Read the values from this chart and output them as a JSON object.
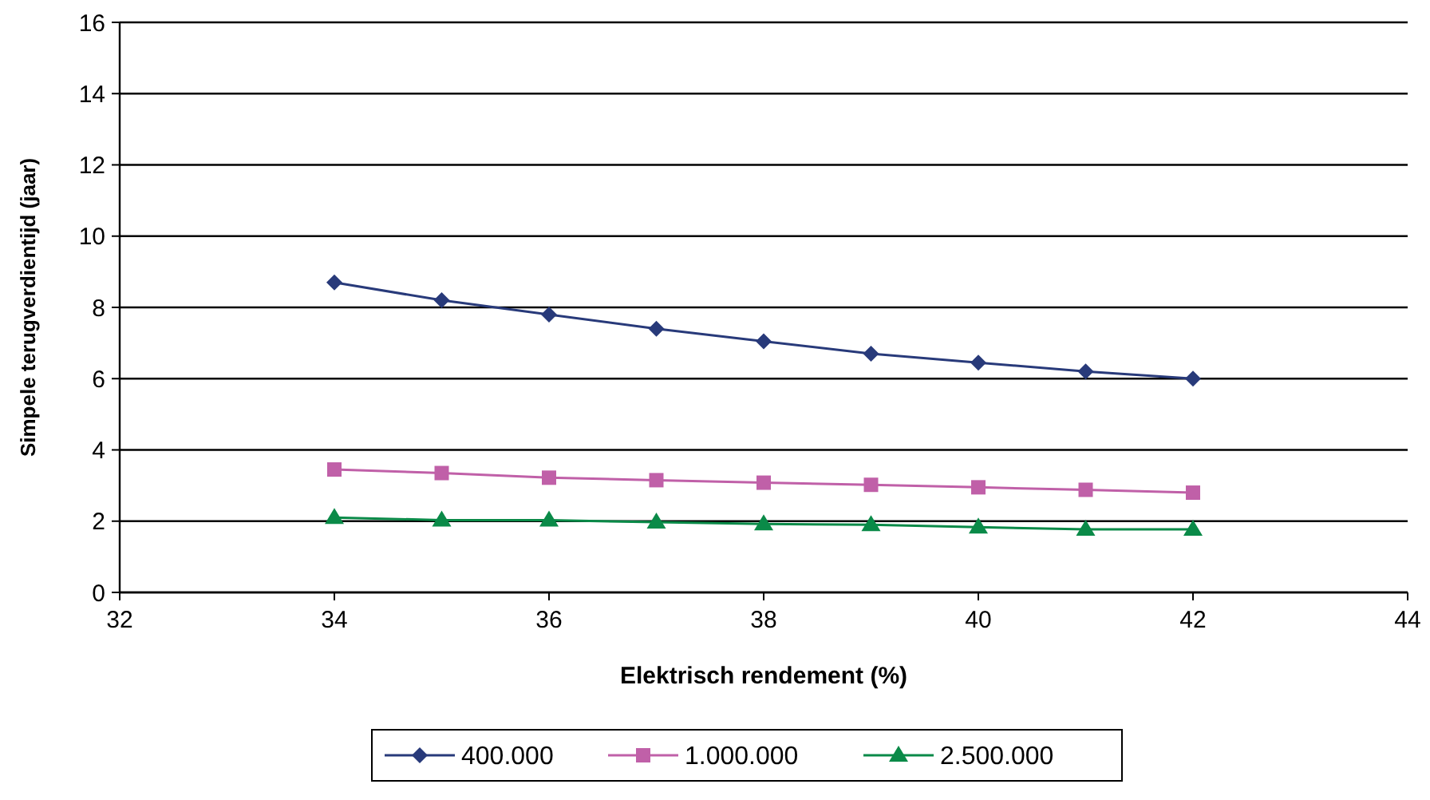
{
  "chart_data": {
    "type": "line",
    "xlabel": "Elektrisch rendement (%)",
    "ylabel": "Simpele terugverdientijd (jaar)",
    "x": [
      34,
      35,
      36,
      37,
      38,
      39,
      40,
      41,
      42
    ],
    "series": [
      {
        "name": "400.000",
        "color": "#283a7a",
        "marker": "diamond",
        "values": [
          8.7,
          8.2,
          7.8,
          7.4,
          7.05,
          6.7,
          6.45,
          6.2,
          6.0
        ]
      },
      {
        "name": "1.000.000",
        "color": "#c060a8",
        "marker": "square",
        "values": [
          3.45,
          3.35,
          3.22,
          3.15,
          3.08,
          3.02,
          2.95,
          2.88,
          2.8
        ]
      },
      {
        "name": "2.500.000",
        "color": "#0a8a48",
        "marker": "triangle",
        "values": [
          2.1,
          2.03,
          2.03,
          1.97,
          1.92,
          1.9,
          1.83,
          1.77,
          1.77
        ]
      }
    ],
    "xlim": [
      32,
      44
    ],
    "xticks": [
      32,
      34,
      36,
      38,
      40,
      42,
      44
    ],
    "ylim": [
      0,
      16
    ],
    "yticks": [
      0,
      2,
      4,
      6,
      8,
      10,
      12,
      14,
      16
    ],
    "grid": "y",
    "legend": "bottom",
    "line_style": "solid"
  }
}
